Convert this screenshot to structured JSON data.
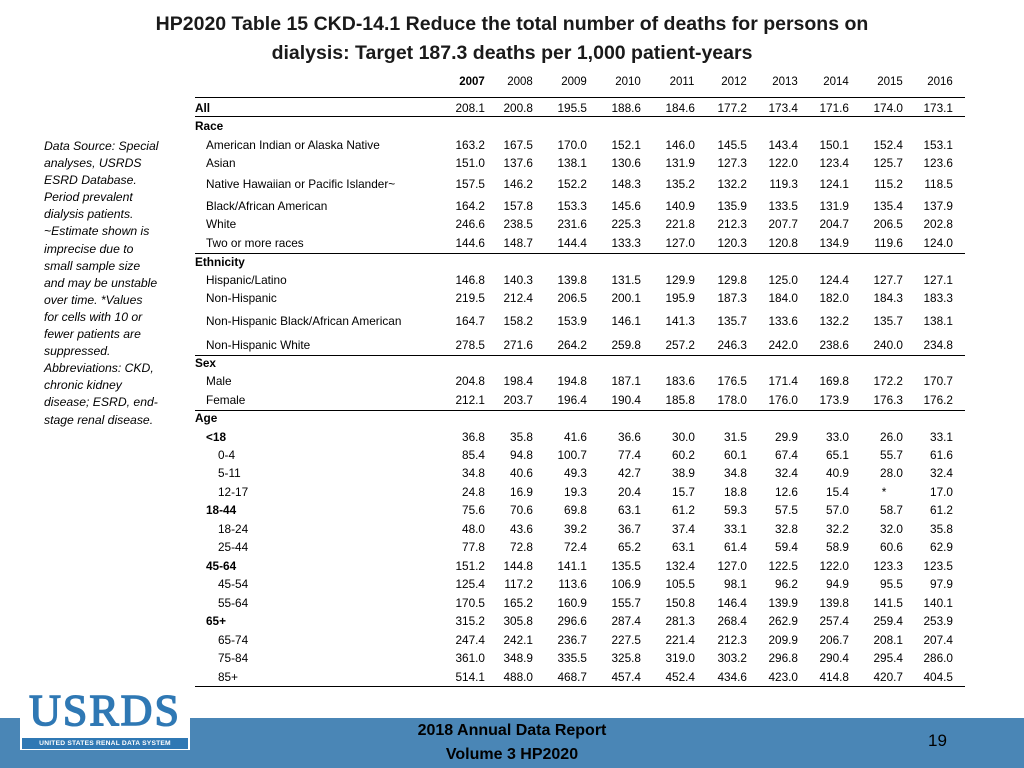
{
  "title_line1": "HP2020 Table 15 CKD-14.1 Reduce the total number of deaths for persons on",
  "title_line2": "dialysis: Target 187.3 deaths per 1,000 patient-years",
  "years": [
    "2007",
    "2008",
    "2009",
    "2010",
    "2011",
    "2012",
    "2013",
    "2014",
    "2015",
    "2016"
  ],
  "note_lines": [
    "Data Source: Special",
    "analyses, USRDS",
    "ESRD Database.",
    "Period prevalent",
    "dialysis patients.",
    "~Estimate shown is",
    "imprecise due to",
    "small sample size",
    "and may be unstable",
    "over time. *Values",
    "for cells with 10 or",
    "fewer patients are",
    "suppressed.",
    "Abbreviations: CKD,",
    "chronic kidney",
    "disease; ESRD, end-",
    "stage renal disease."
  ],
  "rows": [
    {
      "label": "All",
      "bold": true,
      "values": [
        "208.1",
        "200.8",
        "195.5",
        "188.6",
        "184.6",
        "177.2",
        "173.4",
        "171.6",
        "174.0",
        "173.1"
      ]
    },
    {
      "label": "Race",
      "bold": true,
      "values": []
    },
    {
      "label": "American Indian or Alaska Native",
      "indent": 1,
      "values": [
        "163.2",
        "167.5",
        "170.0",
        "152.1",
        "146.0",
        "145.5",
        "143.4",
        "150.1",
        "152.4",
        "153.1"
      ]
    },
    {
      "label": "Asian",
      "indent": 1,
      "values": [
        "151.0",
        "137.6",
        "138.1",
        "130.6",
        "131.9",
        "127.3",
        "122.0",
        "123.4",
        "125.7",
        "123.6"
      ]
    },
    {
      "label": "Native Hawaiian or Pacific Islander~",
      "indent": 1,
      "values": [
        "157.5",
        "146.2",
        "152.2",
        "148.3",
        "135.2",
        "132.2",
        "119.3",
        "124.1",
        "115.2",
        "118.5"
      ]
    },
    {
      "label": "Black/African American",
      "indent": 1,
      "values": [
        "164.2",
        "157.8",
        "153.3",
        "145.6",
        "140.9",
        "135.9",
        "133.5",
        "131.9",
        "135.4",
        "137.9"
      ]
    },
    {
      "label": "White",
      "indent": 1,
      "values": [
        "246.6",
        "238.5",
        "231.6",
        "225.3",
        "221.8",
        "212.3",
        "207.7",
        "204.7",
        "206.5",
        "202.8"
      ]
    },
    {
      "label": "Two or more races",
      "indent": 1,
      "values": [
        "144.6",
        "148.7",
        "144.4",
        "133.3",
        "127.0",
        "120.3",
        "120.8",
        "134.9",
        "119.6",
        "124.0"
      ]
    },
    {
      "label": "Ethnicity",
      "bold": true,
      "values": []
    },
    {
      "label": "Hispanic/Latino",
      "indent": 1,
      "values": [
        "146.8",
        "140.3",
        "139.8",
        "131.5",
        "129.9",
        "129.8",
        "125.0",
        "124.4",
        "127.7",
        "127.1"
      ]
    },
    {
      "label": "Non-Hispanic",
      "indent": 1,
      "values": [
        "219.5",
        "212.4",
        "206.5",
        "200.1",
        "195.9",
        "187.3",
        "184.0",
        "182.0",
        "184.3",
        "183.3"
      ]
    },
    {
      "label": "Non-Hispanic Black/African American",
      "indent": 1,
      "values": [
        "164.7",
        "158.2",
        "153.9",
        "146.1",
        "141.3",
        "135.7",
        "133.6",
        "132.2",
        "135.7",
        "138.1"
      ]
    },
    {
      "label": "Non-Hispanic White",
      "indent": 1,
      "values": [
        "278.5",
        "271.6",
        "264.2",
        "259.8",
        "257.2",
        "246.3",
        "242.0",
        "238.6",
        "240.0",
        "234.8"
      ]
    },
    {
      "label": "Sex",
      "bold": true,
      "values": []
    },
    {
      "label": "Male",
      "indent": 1,
      "values": [
        "204.8",
        "198.4",
        "194.8",
        "187.1",
        "183.6",
        "176.5",
        "171.4",
        "169.8",
        "172.2",
        "170.7"
      ]
    },
    {
      "label": "Female",
      "indent": 1,
      "values": [
        "212.1",
        "203.7",
        "196.4",
        "190.4",
        "185.8",
        "178.0",
        "176.0",
        "173.9",
        "176.3",
        "176.2"
      ]
    },
    {
      "label": "Age",
      "bold": true,
      "values": []
    },
    {
      "label": "<18",
      "bold": true,
      "indent": 1,
      "values": [
        "36.8",
        "35.8",
        "41.6",
        "36.6",
        "30.0",
        "31.5",
        "29.9",
        "33.0",
        "26.0",
        "33.1"
      ]
    },
    {
      "label": "0-4",
      "indent": 2,
      "values": [
        "85.4",
        "94.8",
        "100.7",
        "77.4",
        "60.2",
        "60.1",
        "67.4",
        "65.1",
        "55.7",
        "61.6"
      ]
    },
    {
      "label": "5-11",
      "indent": 2,
      "values": [
        "34.8",
        "40.6",
        "49.3",
        "42.7",
        "38.9",
        "34.8",
        "32.4",
        "40.9",
        "28.0",
        "32.4"
      ]
    },
    {
      "label": "12-17",
      "indent": 2,
      "values": [
        "24.8",
        "16.9",
        "19.3",
        "20.4",
        "15.7",
        "18.8",
        "12.6",
        "15.4",
        "*",
        "17.0"
      ]
    },
    {
      "label": "18-44",
      "bold": true,
      "indent": 1,
      "values": [
        "75.6",
        "70.6",
        "69.8",
        "63.1",
        "61.2",
        "59.3",
        "57.5",
        "57.0",
        "58.7",
        "61.2"
      ]
    },
    {
      "label": "18-24",
      "indent": 2,
      "values": [
        "48.0",
        "43.6",
        "39.2",
        "36.7",
        "37.4",
        "33.1",
        "32.8",
        "32.2",
        "32.0",
        "35.8"
      ]
    },
    {
      "label": "25-44",
      "indent": 2,
      "values": [
        "77.8",
        "72.8",
        "72.4",
        "65.2",
        "63.1",
        "61.4",
        "59.4",
        "58.9",
        "60.6",
        "62.9"
      ]
    },
    {
      "label": "45-64",
      "bold": true,
      "indent": 1,
      "values": [
        "151.2",
        "144.8",
        "141.1",
        "135.5",
        "132.4",
        "127.0",
        "122.5",
        "122.0",
        "123.3",
        "123.5"
      ]
    },
    {
      "label": "45-54",
      "indent": 2,
      "values": [
        "125.4",
        "117.2",
        "113.6",
        "106.9",
        "105.5",
        "98.1",
        "96.2",
        "94.9",
        "95.5",
        "97.9"
      ]
    },
    {
      "label": "55-64",
      "indent": 2,
      "values": [
        "170.5",
        "165.2",
        "160.9",
        "155.7",
        "150.8",
        "146.4",
        "139.9",
        "139.8",
        "141.5",
        "140.1"
      ]
    },
    {
      "label": "65+",
      "bold": true,
      "indent": 1,
      "values": [
        "315.2",
        "305.8",
        "296.6",
        "287.4",
        "281.3",
        "268.4",
        "262.9",
        "257.4",
        "259.4",
        "253.9"
      ]
    },
    {
      "label": "65-74",
      "indent": 2,
      "values": [
        "247.4",
        "242.1",
        "236.7",
        "227.5",
        "221.4",
        "212.3",
        "209.9",
        "206.7",
        "208.1",
        "207.4"
      ]
    },
    {
      "label": "75-84",
      "indent": 2,
      "values": [
        "361.0",
        "348.9",
        "335.5",
        "325.8",
        "319.0",
        "303.2",
        "296.8",
        "290.4",
        "295.4",
        "286.0"
      ]
    },
    {
      "label": "85+",
      "indent": 2,
      "values": [
        "514.1",
        "488.0",
        "468.7",
        "457.4",
        "452.4",
        "434.6",
        "423.0",
        "414.8",
        "420.7",
        "404.5"
      ]
    }
  ],
  "footer_line1": "2018 Annual Data Report",
  "footer_line2": "Volume 3 HP2020",
  "page_number": "19",
  "logo_text": "USRDS",
  "logo_subtext": "UNITED STATES RENAL DATA SYSTEM",
  "colors": {
    "band": "#4a86b6",
    "logo": "#2f78b4"
  }
}
